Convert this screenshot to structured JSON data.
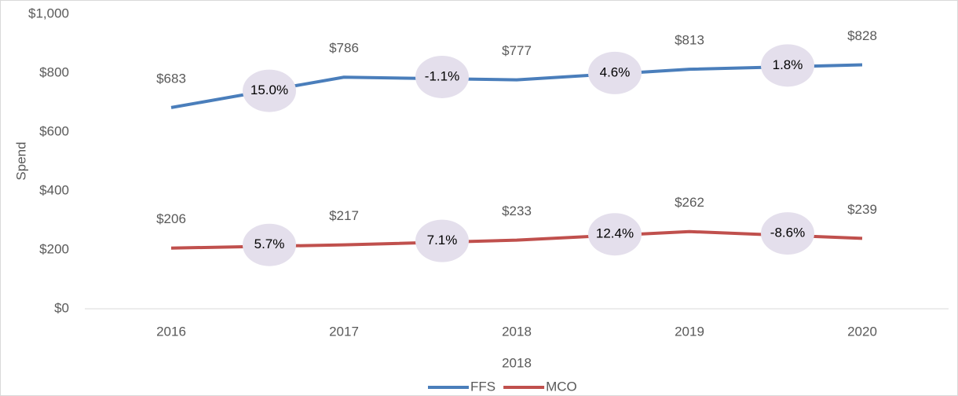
{
  "chart_data": {
    "type": "line",
    "categories": [
      "2016",
      "2017",
      "2018",
      "2019",
      "2020"
    ],
    "series": [
      {
        "name": "FFS",
        "color": "#4a7ebb",
        "values": [
          683,
          786,
          777,
          813,
          828
        ],
        "value_labels": [
          "$683",
          "$786",
          "$777",
          "$813",
          "$828"
        ],
        "annotations": [
          "15.0%",
          "-1.1%",
          "4.6%",
          "1.8%"
        ]
      },
      {
        "name": "MCO",
        "color": "#c0504d",
        "values": [
          206,
          217,
          233,
          262,
          239
        ],
        "value_labels": [
          "$206",
          "$217",
          "$233",
          "$262",
          "$239"
        ],
        "annotations": [
          "5.7%",
          "7.1%",
          "12.4%",
          "-8.6%"
        ]
      }
    ],
    "x_label": "2018",
    "y_label": "Spend",
    "ylim": [
      0,
      1000
    ],
    "yticks": [
      {
        "value": 0,
        "label": "$0"
      },
      {
        "value": 200,
        "label": "$200"
      },
      {
        "value": 400,
        "label": "$400"
      },
      {
        "value": 600,
        "label": "$600"
      },
      {
        "value": 800,
        "label": "$800"
      },
      {
        "value": 1000,
        "label": "$1,000"
      }
    ],
    "grid": false,
    "legend": "bottom"
  }
}
